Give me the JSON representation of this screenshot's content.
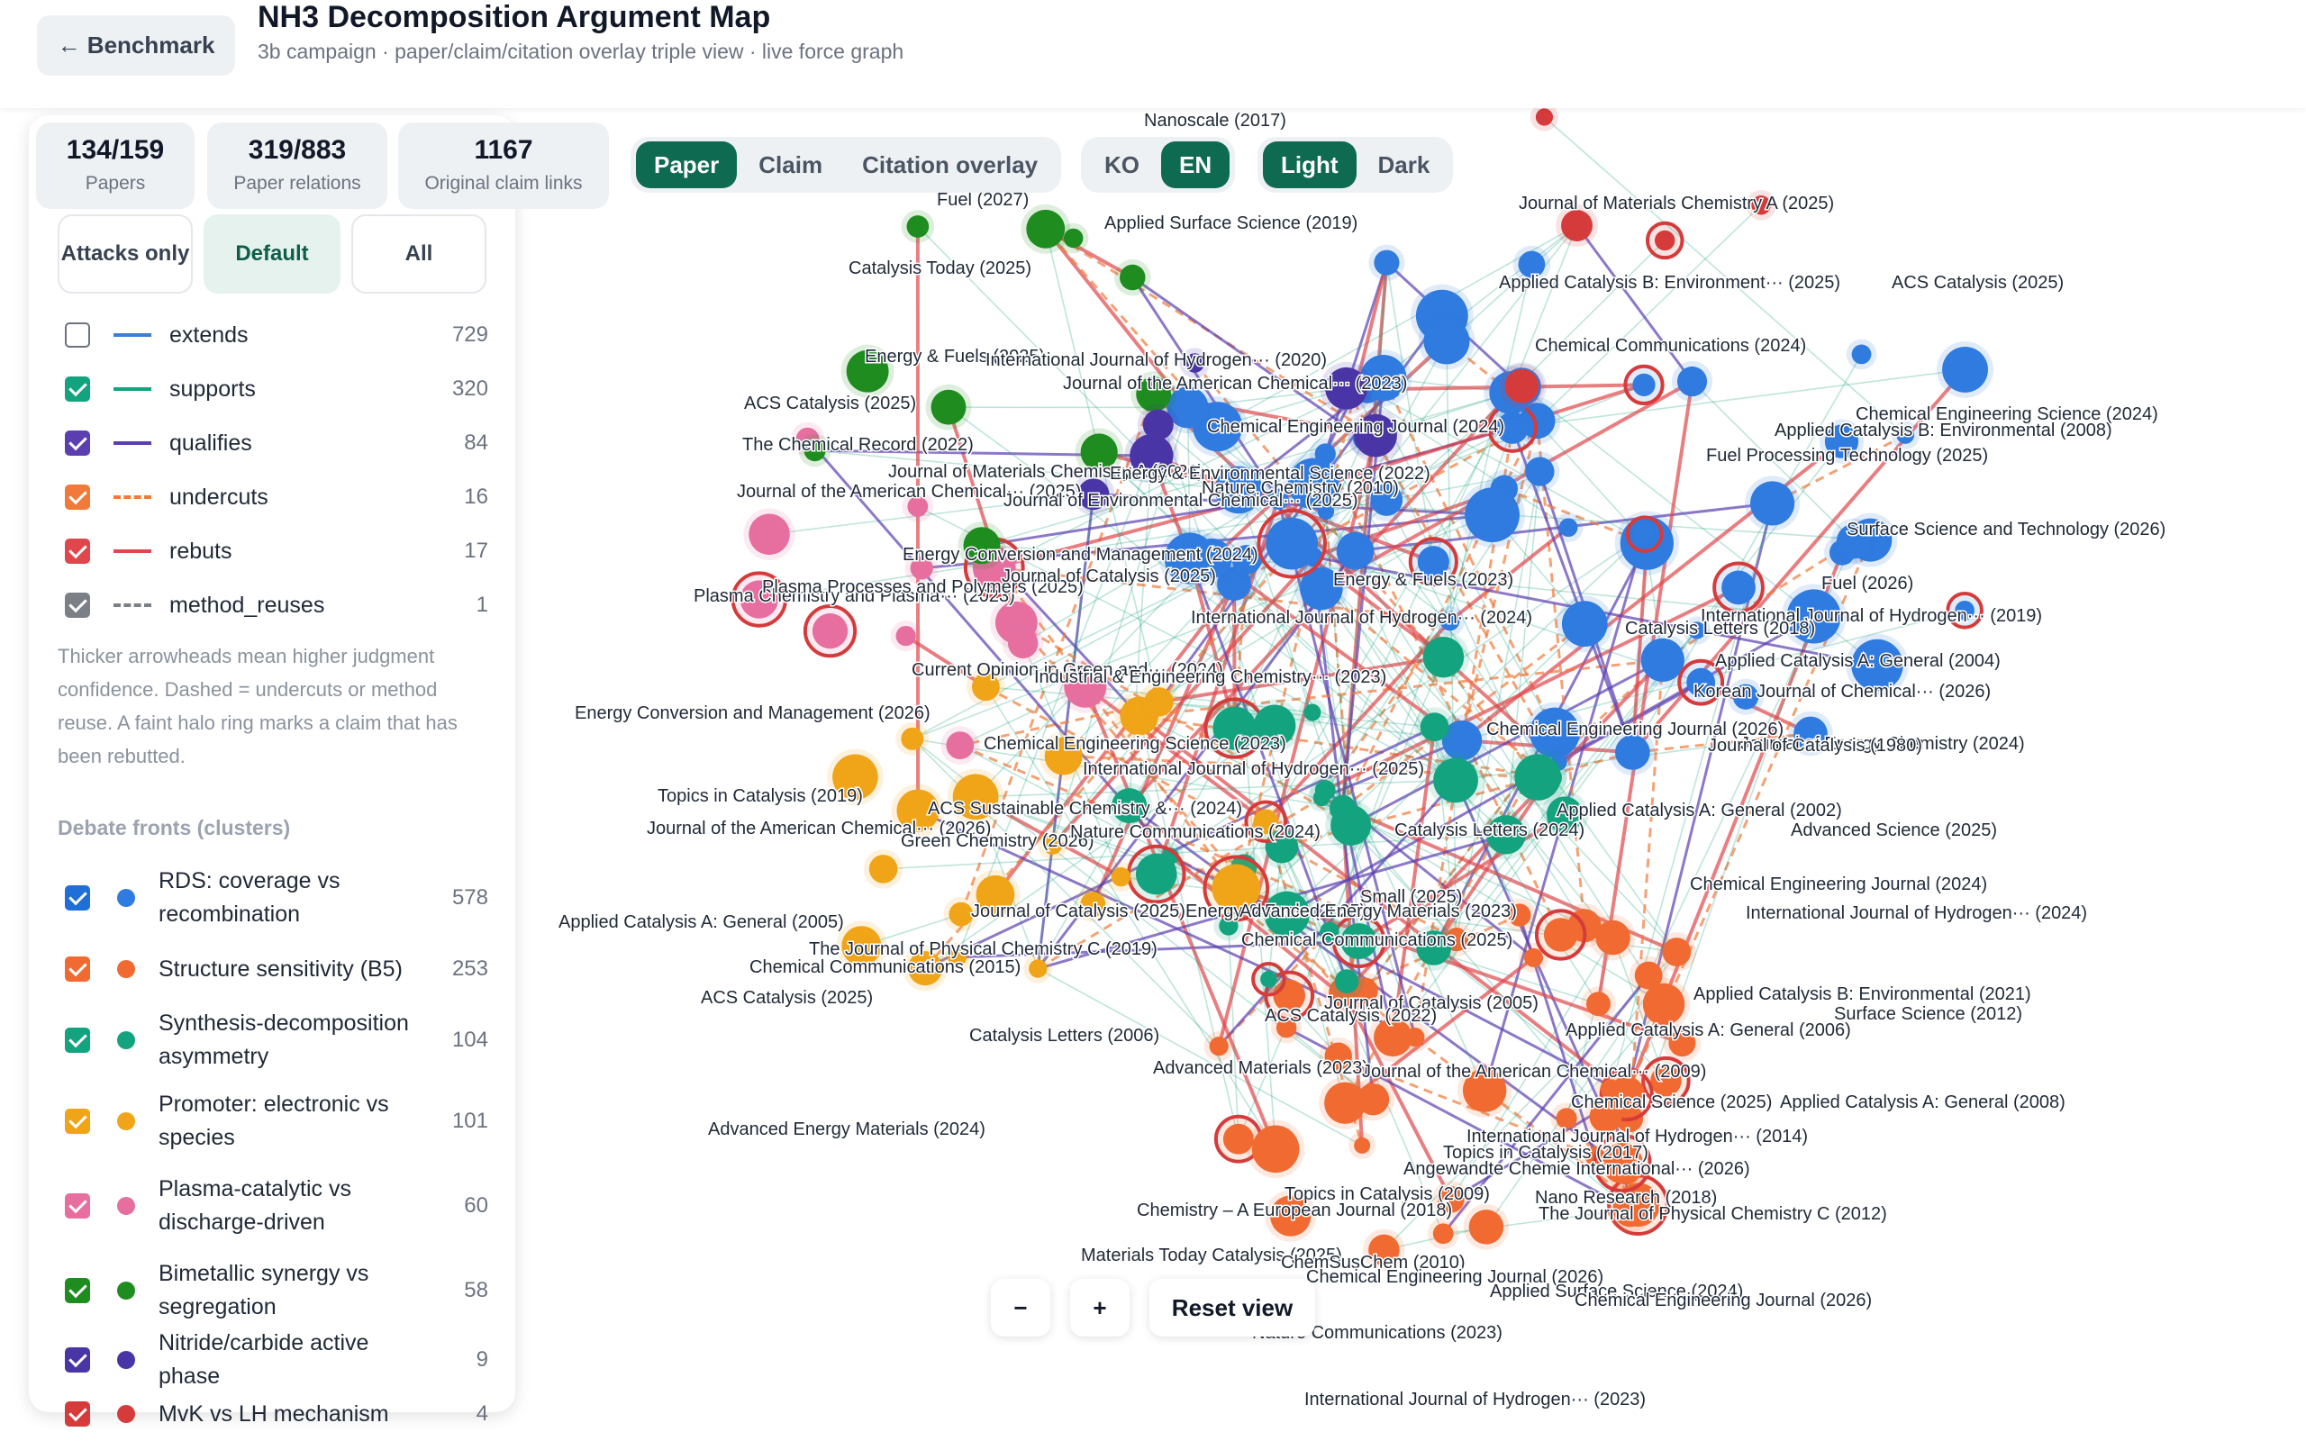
{
  "header": {
    "back_label": "← Benchmark",
    "title": "NH3 Decomposition Argument Map",
    "subtitle": "3b campaign · paper/claim/citation overlay triple view · live force graph"
  },
  "stats": [
    {
      "value": "134/159",
      "label": "Papers"
    },
    {
      "value": "319/883",
      "label": "Paper relations"
    },
    {
      "value": "1167",
      "label": "Original claim links"
    }
  ],
  "filters": [
    {
      "label": "Attacks only",
      "active": false
    },
    {
      "label": "Default",
      "active": true
    },
    {
      "label": "All",
      "active": false
    }
  ],
  "relations": [
    {
      "name": "extends",
      "count": "729",
      "checked": false,
      "color": "#3b7dd8",
      "style": "solid"
    },
    {
      "name": "supports",
      "count": "320",
      "checked": true,
      "color": "#14a37f",
      "style": "solid"
    },
    {
      "name": "qualifies",
      "count": "84",
      "checked": true,
      "color": "#5b3fb0",
      "style": "solid"
    },
    {
      "name": "undercuts",
      "count": "16",
      "checked": true,
      "color": "#f07a3a",
      "style": "dashed"
    },
    {
      "name": "rebuts",
      "count": "17",
      "checked": true,
      "color": "#e0474c",
      "style": "solid"
    },
    {
      "name": "method_reuses",
      "count": "1",
      "checked": true,
      "color": "#7b8087",
      "style": "dashed"
    }
  ],
  "legend_note": "Thicker arrowheads mean higher judgment confidence. Dashed = undercuts or method reuse. A faint halo ring marks a claim that has been rebutted.",
  "fronts_title": "Debate fronts (clusters)",
  "fronts": [
    {
      "name": "RDS: coverage vs recombination",
      "count": "578",
      "color": "#2f7be0",
      "checkbox": "#1f6fd6"
    },
    {
      "name": "Structure sensitivity (B5)",
      "count": "253",
      "color": "#f06a32",
      "checkbox": "#f06a32"
    },
    {
      "name": "Synthesis-decomposition asymmetry",
      "count": "104",
      "color": "#14a37f",
      "checkbox": "#14a37f"
    },
    {
      "name": "Promoter: electronic vs species",
      "count": "101",
      "color": "#f0a418",
      "checkbox": "#f0a418"
    },
    {
      "name": "Plasma-catalytic vs discharge-driven",
      "count": "60",
      "color": "#e66fa0",
      "checkbox": "#e66fa0"
    },
    {
      "name": "Bimetallic synergy vs segregation",
      "count": "58",
      "color": "#1e8c1e",
      "checkbox": "#1e8c1e"
    },
    {
      "name": "Nitride/carbide active phase",
      "count": "9",
      "color": "#4a35a6",
      "checkbox": "#4a35a6"
    },
    {
      "name": "MvK vs LH mechanism",
      "count": "4",
      "color": "#d63b3b",
      "checkbox": "#d63b3b"
    }
  ],
  "view_toggle": [
    {
      "label": "Paper",
      "active": true
    },
    {
      "label": "Claim",
      "active": false
    },
    {
      "label": "Citation overlay",
      "active": false
    }
  ],
  "lang_toggle": [
    {
      "label": "KO",
      "active": false
    },
    {
      "label": "EN",
      "active": true
    }
  ],
  "theme_toggle": [
    {
      "label": "Light",
      "active": true
    },
    {
      "label": "Dark",
      "active": false
    }
  ],
  "zoom": {
    "out_label": "−",
    "in_label": "+",
    "reset_label": "Reset view"
  },
  "graph_labels": [
    "Nanoscale (2017)",
    "Fuel (2027)",
    "Applied Surface Science (2019)",
    "Journal of Materials Chemistry A (2025)",
    "Catalysis Today (2025)",
    "Applied Catalysis B: Environment··· (2025)",
    "ACS Catalysis (2025)",
    "Energy & Fuels (2025)",
    "International Journal of Hydrogen··· (2020)",
    "Chemical Communications (2024)",
    "ACS Catalysis (2025)",
    "Journal of the American Chemical··· (2023)",
    "Chemical Engineering Science (2024)",
    "The Chemical Record (2022)",
    "Chemical Engineering Journal (2024)",
    "Applied Catalysis B: Environmental (2008)",
    "Journal of Materials Chemistry A (2026)",
    "Fuel Processing Technology (2025)",
    "Journal of the American Chemical··· (2025)",
    "Energy & Environmental Science (2022)",
    "Nature Chemistry (2010)",
    "Journal of Environmental Chemical··· (2025)",
    "Energy Conversion and Management (2024)",
    "Surface Science and Technology (2026)",
    "Plasma Chemistry and Plasma··· (2023)",
    "Plasma Processes and Polymers (2025)",
    "Journal of Catalysis (2025)",
    "International Journal of Hydrogen··· (2019)",
    "Energy & Fuels (2023)",
    "Current Opinion in Green and··· (2024)",
    "Industrial & Engineering Chemistry··· (2023)",
    "International Journal of Hydrogen··· (2024)",
    "Korean Journal of Chemical··· (2026)",
    "Energy Conversion and Management (2026)",
    "Journal of Energy Chemistry (2024)",
    "Chemical Engineering Science (2023)",
    "International Journal of Hydrogen··· (2025)",
    "Topics in Catalysis (2019)",
    "ACS Sustainable Chemistry &··· (2024)",
    "Journal of the American Chemical··· (2026)",
    "Green Chemistry (2026)",
    "Nature Communications (2024)",
    "Applied Catalysis A: General (2002)",
    "Catalysis Letters (2024)",
    "Advanced Science (2025)",
    "Applied Catalysis A: General (2005)",
    "Journal of Catalysis (2025)",
    "Energy & Fuels (2025)",
    "Advanced Energy Materials (2023)",
    "Chemical Engineering Journal (2024)",
    "The Journal of Physical Chemistry C (2019)",
    "Chemical Communications (2025)",
    "International Journal of Hydrogen··· (2024)",
    "Chemical Communications (2015)",
    "Applied Catalysis B: Environmental (2021)",
    "ACS Catalysis (2025)",
    "Journal of Catalysis (2005)",
    "Surface Science (2012)",
    "Catalysis Letters (2006)",
    "ACS Catalysis (2022)",
    "Applied Catalysis A: General (2006)",
    "Advanced Materials (2023)",
    "Journal of the American Chemical··· (2009)",
    "Applied Catalysis A: General (2008)",
    "Chemical Science (2025)",
    "Advanced Energy Materials (2024)",
    "International Journal of Hydrogen··· (2014)",
    "Topics in Catalysis (2017)",
    "Angewandte Chemie International··· (2026)",
    "Topics in Catalysis (2009)",
    "Chemistry – A European Journal (2018)",
    "Nano Research (2018)",
    "The Journal of Physical Chemistry C (2012)",
    "Materials Today Catalysis (2025)",
    "ChemSusChem (2010)",
    "Chemical Engineering Journal (2026)",
    "Applied Surface Science (2024)",
    "Chemical Engineering Journal (2026)",
    "Nature Communications (2023)",
    "International Journal of Hydrogen··· (2023)",
    "Journal of Catalysis (1980)",
    "Applied Catalysis A: General (2004)",
    "Chemical Engineering Journal (2026)",
    "Fuel (2026)",
    "Small (2025)",
    "Catalysis Letters (2018)"
  ]
}
